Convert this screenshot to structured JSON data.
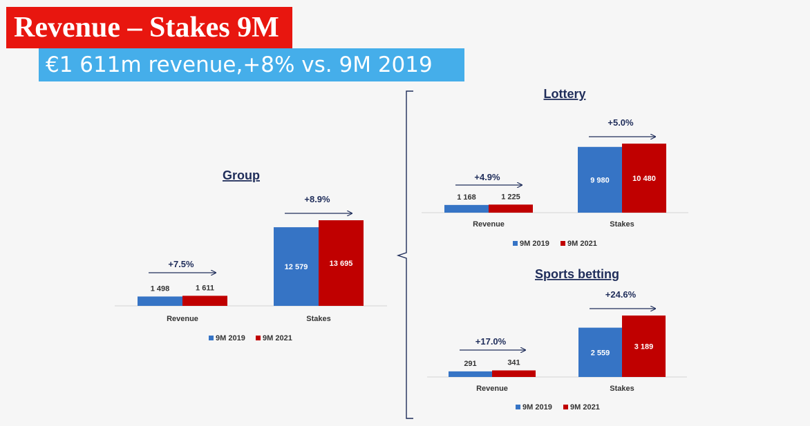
{
  "slide": {
    "title": "Revenue – Stakes 9M",
    "subtitle": "€1 611m revenue,+8% vs. 9M 2019"
  },
  "colors": {
    "series_2019": "#3674c5",
    "series_2021": "#c00000",
    "title_bg": "#e8160f",
    "subtitle_bg": "#45aeea",
    "arrow": "#1f2d5a"
  },
  "chart_data": [
    {
      "id": "group",
      "type": "bar",
      "title": "Group",
      "categories": [
        "Revenue",
        "Stakes"
      ],
      "series": [
        {
          "name": "9M 2019",
          "values": [
            1498,
            12579
          ],
          "labels": [
            "1 498",
            "12 579"
          ]
        },
        {
          "name": "9M 2021",
          "values": [
            1611,
            13695
          ],
          "labels": [
            "1 611",
            "13 695"
          ]
        }
      ],
      "growth": [
        "+7.5%",
        "+8.9%"
      ],
      "ylim": [
        0,
        13695
      ],
      "legend": "bottom",
      "grid": false
    },
    {
      "id": "lottery",
      "type": "bar",
      "title": "Lottery",
      "categories": [
        "Revenue",
        "Stakes"
      ],
      "series": [
        {
          "name": "9M 2019",
          "values": [
            1168,
            9980
          ],
          "labels": [
            "1 168",
            "9 980"
          ]
        },
        {
          "name": "9M 2021",
          "values": [
            1225,
            10480
          ],
          "labels": [
            "1 225",
            "10 480"
          ]
        }
      ],
      "growth": [
        "+4.9%",
        "+5.0%"
      ],
      "ylim": [
        0,
        10480
      ],
      "legend": "bottom",
      "grid": false
    },
    {
      "id": "sports",
      "type": "bar",
      "title": "Sports betting",
      "categories": [
        "Revenue",
        "Stakes"
      ],
      "series": [
        {
          "name": "9M 2019",
          "values": [
            291,
            2559
          ],
          "labels": [
            "291",
            "2 559"
          ]
        },
        {
          "name": "9M 2021",
          "values": [
            341,
            3189
          ],
          "labels": [
            "341",
            "3 189"
          ]
        }
      ],
      "growth": [
        "+17.0%",
        "+24.6%"
      ],
      "ylim": [
        0,
        3189
      ],
      "legend": "bottom",
      "grid": false
    }
  ]
}
